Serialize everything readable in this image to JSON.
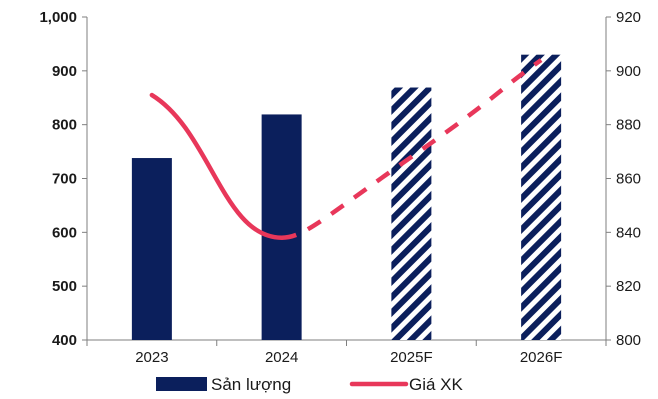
{
  "chart_data": {
    "type": "bar",
    "categories": [
      "2023",
      "2024",
      "2025F",
      "2026F"
    ],
    "series": [
      {
        "name": "Sản lượng",
        "kind": "bar",
        "axis": "left",
        "values": [
          738,
          819,
          869,
          930
        ],
        "forecast": [
          false,
          false,
          true,
          true
        ],
        "color": "#0b1f5c"
      },
      {
        "name": "Giá XK",
        "kind": "line",
        "axis": "right",
        "values": [
          891,
          838,
          868,
          904
        ],
        "forecast": [
          false,
          false,
          true,
          true
        ],
        "color": "#e8375a"
      }
    ],
    "ylim_left": [
      400,
      1000
    ],
    "yticks_left": [
      "400",
      "500",
      "600",
      "700",
      "800",
      "900",
      "1,000"
    ],
    "ylim_right": [
      800,
      920
    ],
    "yticks_right": [
      "800",
      "820",
      "840",
      "860",
      "880",
      "900",
      "920"
    ],
    "legend": {
      "placement": "bottom",
      "items": [
        "Sản lượng",
        "Giá XK"
      ]
    },
    "grid": false
  }
}
